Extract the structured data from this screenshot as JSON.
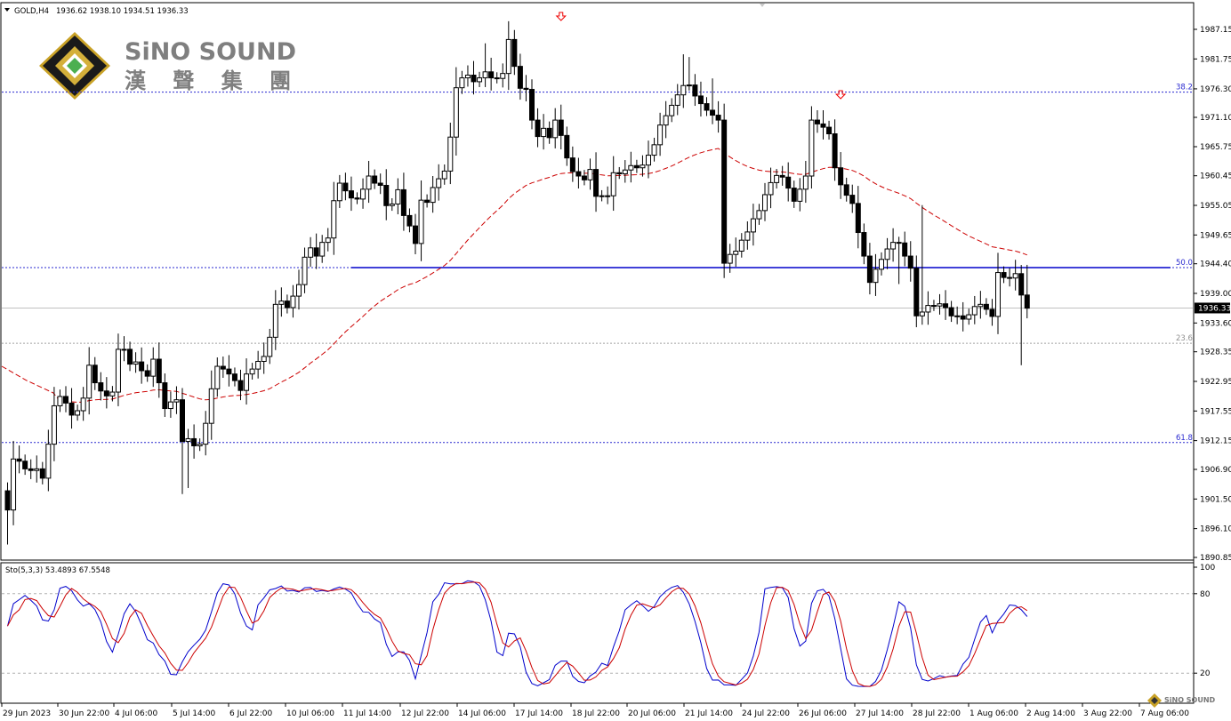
{
  "header": {
    "symbol": "GOLD,H4",
    "ohlc": "1936.62 1938.10 1934.51 1936.33"
  },
  "logo": {
    "en": "SiNO SOUND",
    "cn": "漢 聲 集 團"
  },
  "colors": {
    "moving_average": "#cc0000",
    "support_line": "#0000cc",
    "fib_lines": "#2a2ad0",
    "stoch_main": "#0000cc",
    "stoch_signal": "#cc0000",
    "candles": "#000000"
  },
  "chart_data": [
    {
      "type": "candlestick",
      "title": "GOLD,H4",
      "ohlc_readout": "1936.62 1938.10 1934.51 1936.33",
      "ylim": [
        1890.85,
        1990.5
      ],
      "y_ticks": [
        "1987.15",
        "1981.75",
        "1976.30",
        "1971.10",
        "1965.75",
        "1960.45",
        "1955.05",
        "1949.65",
        "1944.40",
        "1939.00",
        "1933.60",
        "1928.35",
        "1922.95",
        "1917.55",
        "1912.15",
        "1906.90",
        "1901.50",
        "1896.10",
        "1890.85"
      ],
      "x_tick_labels": [
        "29 Jun 2023",
        "30 Jun 22:00",
        "4 Jul 06:00",
        "5 Jul 14:00",
        "6 Jul 22:00",
        "10 Jul 06:00",
        "11 Jul 14:00",
        "12 Jul 22:00",
        "14 Jul 06:00",
        "17 Jul 14:00",
        "18 Jul 22:00",
        "20 Jul 06:00",
        "21 Jul 14:00",
        "24 Jul 22:00",
        "26 Jul 06:00",
        "27 Jul 14:00",
        "28 Jul 22:00",
        "1 Aug 06:00",
        "2 Aug 14:00",
        "3 Aug 22:00",
        "7 Aug 06:00"
      ],
      "current_price": "1936.33",
      "horizontal_levels": [
        {
          "label": "38.2",
          "value": 1975.7,
          "style": "fib"
        },
        {
          "label": "50.0",
          "value": 1943.7,
          "style": "fib"
        },
        {
          "label": "23.6",
          "value": 1929.9,
          "style": "fib-grey"
        },
        {
          "label": "61.8",
          "value": 1911.8,
          "style": "fib"
        }
      ],
      "support_line": {
        "value": 1943.7
      },
      "fractal_markers": [
        {
          "bar": 95,
          "price": 1988.9
        },
        {
          "bar": 143,
          "price": 1973.3
        }
      ],
      "candles": [],
      "moving_average": []
    },
    {
      "type": "line",
      "title": "Sto(5,3,3) 53.4893 67.5548",
      "ylim": [
        0,
        100
      ],
      "y_ticks": [
        "100",
        "80",
        "20"
      ],
      "levels": [
        80,
        20
      ],
      "series": []
    }
  ]
}
